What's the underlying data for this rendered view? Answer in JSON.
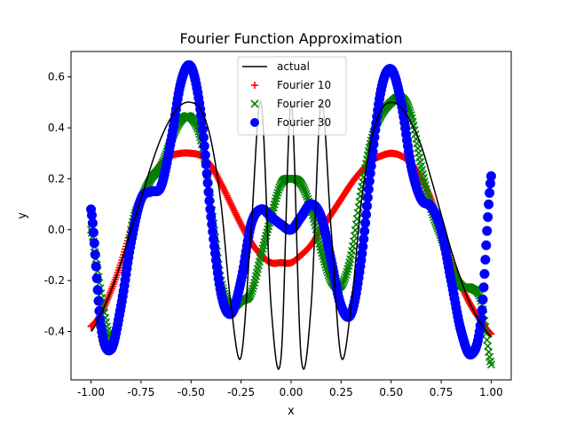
{
  "chart_data": {
    "type": "scatter",
    "title": "Fourier Function Approximation",
    "xlabel": "x",
    "ylabel": "y",
    "xlim": [
      -1.1,
      1.1
    ],
    "ylim": [
      -0.59,
      0.7
    ],
    "xticks": [
      "-1.00",
      "-0.75",
      "-0.50",
      "-0.25",
      "0.00",
      "0.25",
      "0.50",
      "0.75",
      "1.00"
    ],
    "yticks": [
      "-0.4",
      "-0.2",
      "0.0",
      "0.2",
      "0.4",
      "0.6"
    ],
    "grid": false,
    "legend_position": "top-center",
    "series": [
      {
        "name": "actual",
        "kind": "line",
        "color": "#000000",
        "x": [
          -1.0,
          -0.95,
          -0.9,
          -0.85,
          -0.8,
          -0.75,
          -0.7,
          -0.65,
          -0.6,
          -0.55,
          -0.5,
          -0.45,
          -0.4,
          -0.35,
          -0.3,
          -0.25,
          -0.2,
          -0.15,
          -0.1,
          -0.05,
          0.0,
          0.05,
          0.1,
          0.15,
          0.2,
          0.25,
          0.3,
          0.35,
          0.4,
          0.45,
          0.5,
          0.55,
          0.6,
          0.65,
          0.7,
          0.75,
          0.8,
          0.85,
          0.9,
          0.95,
          1.0
        ],
        "y": [
          -0.4,
          -0.33,
          -0.24,
          -0.13,
          0.0,
          0.12,
          0.25,
          0.36,
          0.44,
          0.49,
          0.5,
          0.47,
          0.35,
          0.1,
          -0.3,
          -0.5,
          0.0,
          0.5,
          -0.3,
          -0.5,
          0.5,
          -0.5,
          -0.3,
          0.5,
          0.0,
          -0.5,
          -0.3,
          0.1,
          0.35,
          0.47,
          0.5,
          0.48,
          0.42,
          0.33,
          0.2,
          0.06,
          -0.08,
          -0.2,
          -0.3,
          -0.37,
          -0.42
        ]
      },
      {
        "name": "Fourier 10",
        "kind": "scatter",
        "marker": "plus",
        "color": "#ff0000",
        "x": [
          -1.0,
          -0.95,
          -0.9,
          -0.85,
          -0.8,
          -0.75,
          -0.7,
          -0.65,
          -0.6,
          -0.55,
          -0.5,
          -0.45,
          -0.4,
          -0.35,
          -0.3,
          -0.25,
          -0.2,
          -0.15,
          -0.1,
          -0.05,
          0.0,
          0.05,
          0.1,
          0.15,
          0.2,
          0.25,
          0.3,
          0.35,
          0.4,
          0.45,
          0.5,
          0.55,
          0.6,
          0.65,
          0.7,
          0.75,
          0.8,
          0.85,
          0.9,
          0.95,
          1.0
        ],
        "y": [
          -0.38,
          -0.33,
          -0.24,
          -0.13,
          0.0,
          0.12,
          0.2,
          0.26,
          0.29,
          0.3,
          0.3,
          0.29,
          0.25,
          0.18,
          0.1,
          0.02,
          -0.05,
          -0.1,
          -0.13,
          -0.13,
          -0.13,
          -0.1,
          -0.06,
          0.0,
          0.06,
          0.12,
          0.18,
          0.23,
          0.27,
          0.29,
          0.3,
          0.29,
          0.26,
          0.2,
          0.12,
          0.0,
          -0.12,
          -0.22,
          -0.3,
          -0.36,
          -0.41
        ]
      },
      {
        "name": "Fourier 20",
        "kind": "scatter",
        "marker": "x",
        "color": "#008000",
        "x": [
          -1.0,
          -0.95,
          -0.9,
          -0.85,
          -0.8,
          -0.75,
          -0.7,
          -0.65,
          -0.6,
          -0.55,
          -0.5,
          -0.45,
          -0.4,
          -0.35,
          -0.3,
          -0.25,
          -0.2,
          -0.15,
          -0.1,
          -0.05,
          0.0,
          0.05,
          0.1,
          0.15,
          0.2,
          0.25,
          0.3,
          0.35,
          0.4,
          0.45,
          0.5,
          0.55,
          0.6,
          0.65,
          0.7,
          0.75,
          0.8,
          0.85,
          0.9,
          0.95,
          1.0
        ],
        "y": [
          0.0,
          -0.25,
          -0.43,
          -0.3,
          0.0,
          0.12,
          0.2,
          0.25,
          0.35,
          0.43,
          0.44,
          0.35,
          0.1,
          -0.2,
          -0.3,
          -0.28,
          -0.25,
          -0.1,
          0.05,
          0.18,
          0.2,
          0.18,
          0.08,
          -0.08,
          -0.2,
          -0.22,
          -0.1,
          0.15,
          0.35,
          0.45,
          0.5,
          0.52,
          0.45,
          0.25,
          0.08,
          -0.03,
          -0.15,
          -0.22,
          -0.23,
          -0.28,
          -0.53
        ]
      },
      {
        "name": "Fourier 30",
        "kind": "scatter",
        "marker": "circle",
        "color": "#0000ff",
        "x": [
          -1.0,
          -0.95,
          -0.9,
          -0.85,
          -0.8,
          -0.75,
          -0.7,
          -0.65,
          -0.6,
          -0.55,
          -0.5,
          -0.45,
          -0.4,
          -0.35,
          -0.3,
          -0.25,
          -0.2,
          -0.15,
          -0.1,
          -0.05,
          0.0,
          0.05,
          0.1,
          0.15,
          0.2,
          0.25,
          0.3,
          0.35,
          0.4,
          0.45,
          0.5,
          0.55,
          0.6,
          0.65,
          0.7,
          0.75,
          0.8,
          0.85,
          0.9,
          0.95,
          1.0
        ],
        "y": [
          0.08,
          -0.38,
          -0.47,
          -0.3,
          -0.05,
          0.12,
          0.15,
          0.17,
          0.35,
          0.58,
          0.64,
          0.45,
          0.05,
          -0.25,
          -0.33,
          -0.2,
          0.02,
          0.08,
          0.05,
          0.02,
          0.0,
          0.05,
          0.1,
          0.05,
          -0.12,
          -0.3,
          -0.33,
          -0.12,
          0.25,
          0.55,
          0.63,
          0.5,
          0.25,
          0.12,
          0.09,
          0.0,
          -0.2,
          -0.4,
          -0.49,
          -0.35,
          0.21
        ]
      }
    ]
  }
}
